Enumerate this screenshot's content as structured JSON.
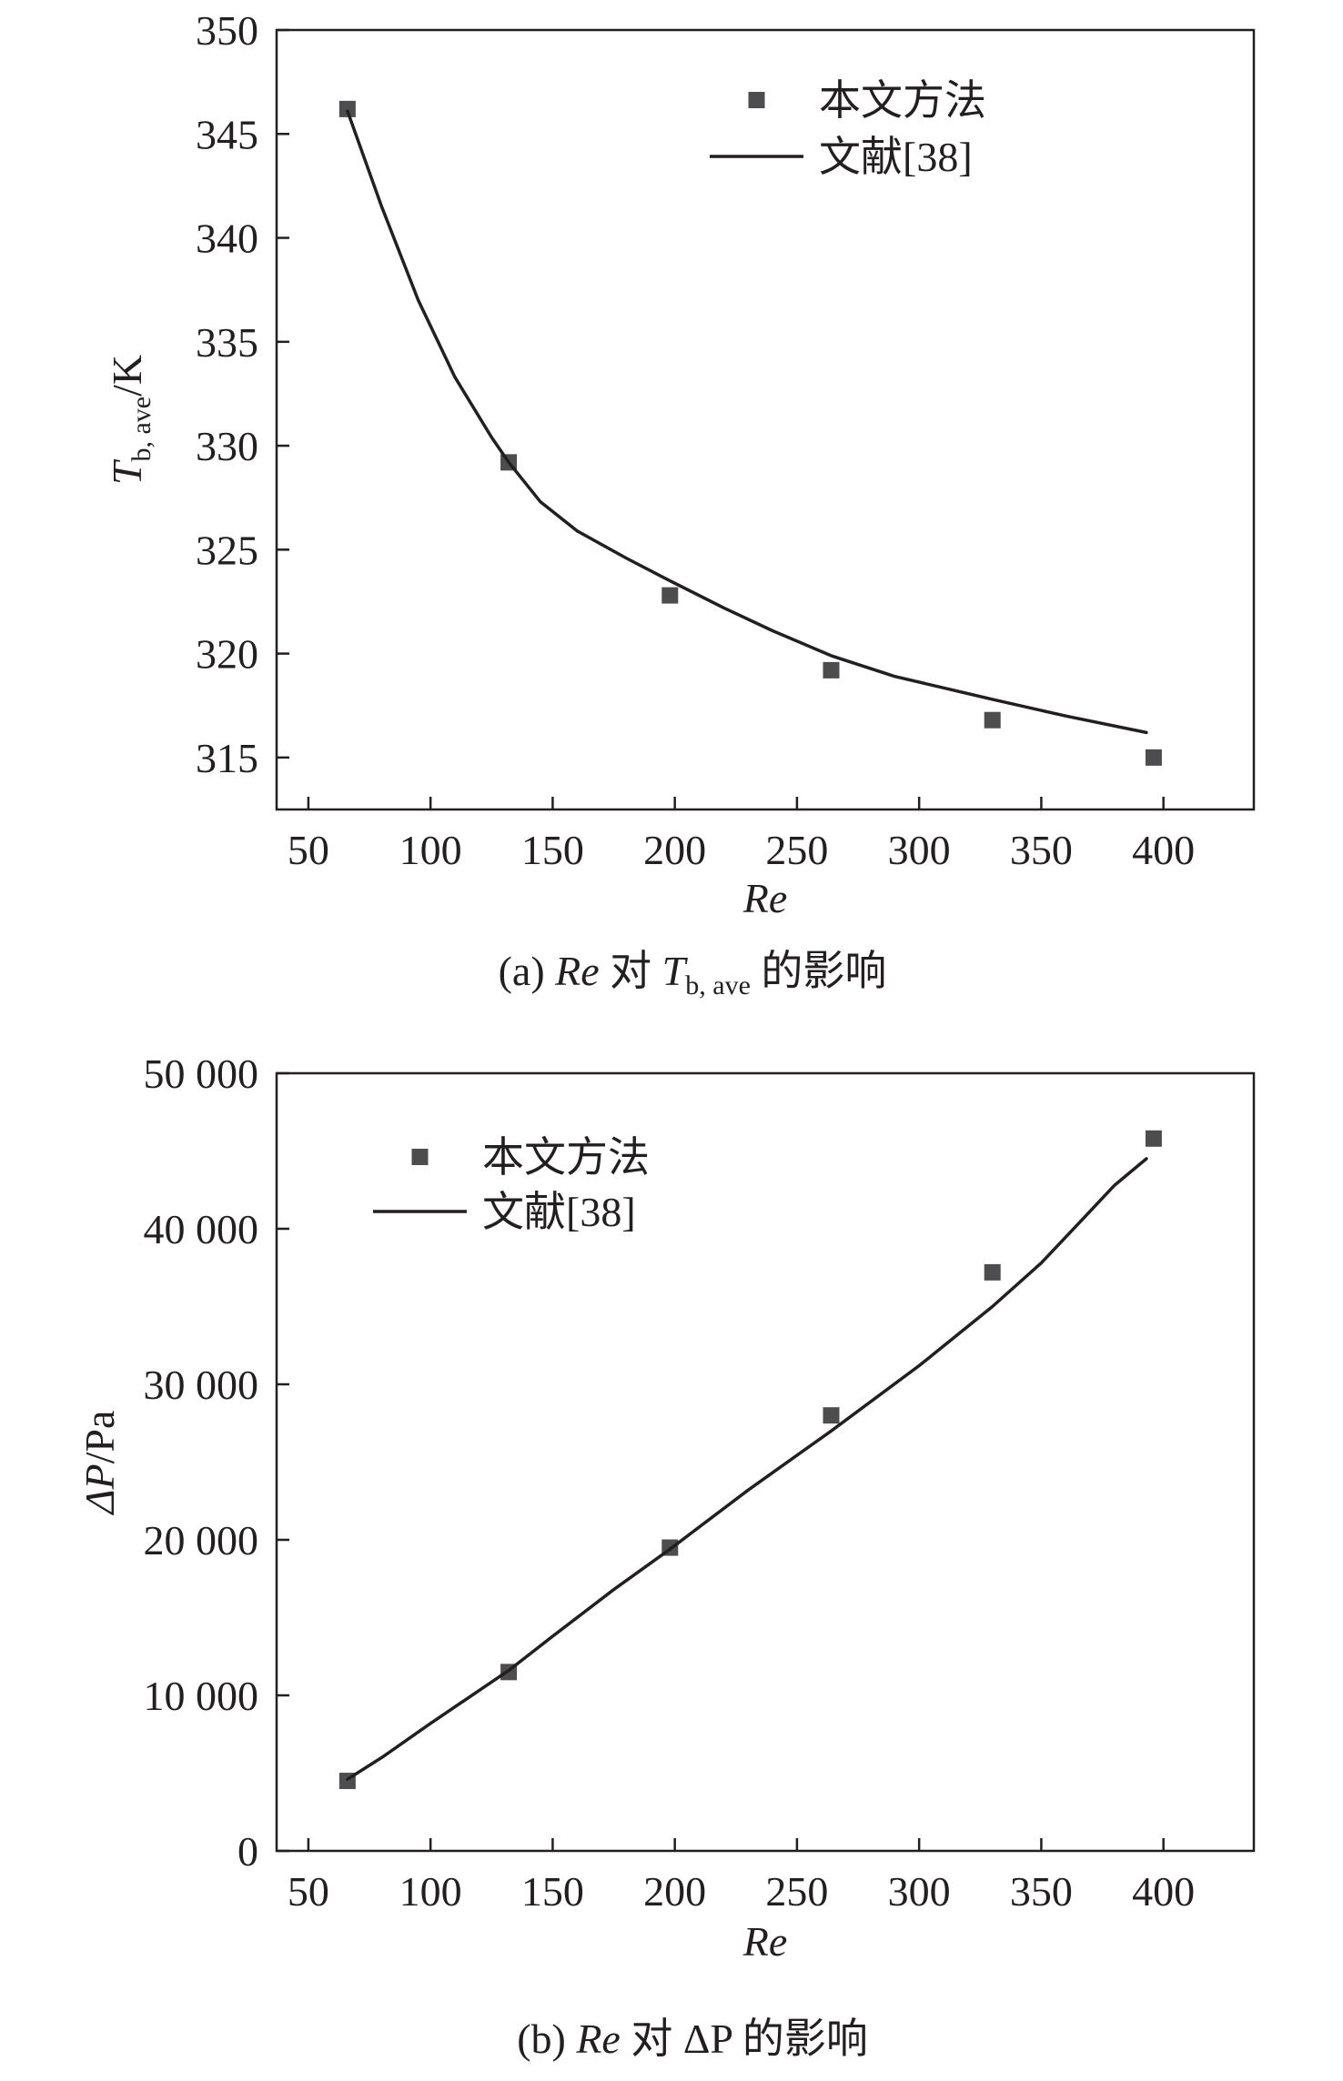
{
  "colors": {
    "ink": "#231f20",
    "marker": "#4d4d4f"
  },
  "chart_data": [
    {
      "type": "scatter",
      "panel": "a",
      "caption": {
        "prefix": "(a) ",
        "var": "Re",
        "middle": " 对 ",
        "sym": "T",
        "sub": "b, ave",
        "suffix": " 的影响"
      },
      "xlabel": "Re",
      "ylabel": {
        "sym": "T",
        "sub": "b, ave",
        "unit": "/K"
      },
      "xlim": [
        37,
        437
      ],
      "ylim": [
        312.5,
        350
      ],
      "xticks": [
        50,
        100,
        150,
        200,
        250,
        300,
        350,
        400
      ],
      "xtick_labels": [
        "50",
        "100",
        "150",
        "200",
        "250",
        "300",
        "350",
        "400"
      ],
      "yticks": [
        315,
        320,
        325,
        330,
        335,
        340,
        345,
        350
      ],
      "ytick_labels": [
        "315",
        "320",
        "325",
        "330",
        "335",
        "340",
        "345",
        "350"
      ],
      "grid": false,
      "legend": {
        "placement": "top-right",
        "entries": [
          {
            "label": "本文方法",
            "kind": "marker"
          },
          {
            "label": "文献[38]",
            "kind": "line"
          }
        ]
      },
      "series": [
        {
          "name": "本文方法",
          "kind": "scatter",
          "x": [
            66,
            132,
            198,
            264,
            330,
            396
          ],
          "y": [
            346.2,
            329.2,
            322.8,
            319.2,
            316.8,
            315.0
          ]
        },
        {
          "name": "文献[38]",
          "kind": "line",
          "x": [
            66,
            80,
            95,
            110,
            125,
            132,
            145,
            160,
            180,
            198,
            220,
            240,
            264,
            290,
            330,
            360,
            393
          ],
          "y": [
            346.1,
            341.5,
            337.0,
            333.3,
            330.4,
            329.2,
            327.3,
            325.9,
            324.6,
            323.5,
            322.2,
            321.1,
            319.9,
            318.9,
            317.8,
            317.0,
            316.2
          ]
        }
      ]
    },
    {
      "type": "scatter",
      "panel": "b",
      "caption": {
        "prefix": "(b) ",
        "var": "Re",
        "middle": " 对 ",
        "sym": "ΔP",
        "sub": "",
        "suffix": " 的影响"
      },
      "xlabel": "Re",
      "ylabel": {
        "sym": "ΔP",
        "sub": "",
        "unit": "/Pa"
      },
      "xlim": [
        37,
        437
      ],
      "ylim": [
        0,
        50000
      ],
      "xticks": [
        50,
        100,
        150,
        200,
        250,
        300,
        350,
        400
      ],
      "xtick_labels": [
        "50",
        "100",
        "150",
        "200",
        "250",
        "300",
        "350",
        "400"
      ],
      "yticks": [
        0,
        10000,
        20000,
        30000,
        40000,
        50000
      ],
      "ytick_labels": [
        "0",
        "10 000",
        "20 000",
        "30 000",
        "40 000",
        "50 000"
      ],
      "grid": false,
      "legend": {
        "placement": "top-left",
        "entries": [
          {
            "label": "本文方法",
            "kind": "marker"
          },
          {
            "label": "文献[38]",
            "kind": "line"
          }
        ]
      },
      "series": [
        {
          "name": "本文方法",
          "kind": "scatter",
          "x": [
            66,
            132,
            198,
            264,
            330,
            396
          ],
          "y": [
            4500,
            11500,
            19500,
            28000,
            37200,
            45800
          ]
        },
        {
          "name": "文献[38]",
          "kind": "line",
          "x": [
            66,
            80,
            100,
            132,
            150,
            175,
            198,
            230,
            264,
            300,
            330,
            350,
            365,
            380,
            393
          ],
          "y": [
            4600,
            6000,
            8200,
            11600,
            13800,
            16800,
            19400,
            23200,
            27000,
            31200,
            35000,
            37800,
            40300,
            42800,
            44500
          ]
        }
      ]
    }
  ]
}
